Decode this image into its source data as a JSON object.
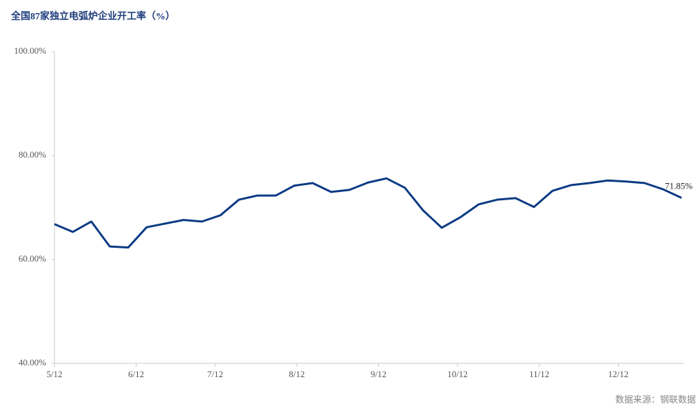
{
  "chart_data": {
    "type": "line",
    "title": "全国87家独立电弧炉企业开工率（%）",
    "source": "数据来源：钢联数据",
    "x": [
      0,
      7,
      14,
      21,
      28,
      35,
      42,
      49,
      56,
      63,
      70,
      77,
      84,
      91,
      98,
      105,
      112,
      119,
      126,
      133,
      140,
      147,
      154,
      161,
      168,
      175,
      182,
      189,
      196,
      203,
      210,
      217,
      224,
      231,
      238
    ],
    "series": [
      {
        "color": "#0b3a84",
        "values": [
          66.8,
          65.3,
          67.3,
          62.5,
          62.3,
          66.2,
          66.9,
          67.6,
          67.3,
          68.5,
          71.5,
          72.3,
          72.3,
          74.2,
          74.7,
          73.0,
          73.4,
          74.8,
          75.6,
          73.8,
          69.4,
          66.1,
          68.1,
          70.6,
          71.5,
          71.8,
          70.1,
          73.2,
          74.3,
          74.7,
          75.2,
          75.0,
          74.7,
          73.5,
          71.85
        ],
        "value_labels": [
          null,
          null,
          null,
          null,
          null,
          null,
          null,
          null,
          null,
          null,
          null,
          null,
          null,
          null,
          null,
          null,
          null,
          null,
          null,
          null,
          null,
          null,
          null,
          null,
          null,
          null,
          null,
          null,
          null,
          null,
          null,
          null,
          null,
          null,
          "71.85%"
        ]
      }
    ],
    "xlim": [
      0,
      239
    ],
    "xticks": [
      {
        "value": 0,
        "label": "5/12"
      },
      {
        "value": 31,
        "label": "6/12"
      },
      {
        "value": 61,
        "label": "7/12"
      },
      {
        "value": 92,
        "label": "8/12"
      },
      {
        "value": 123,
        "label": "9/12"
      },
      {
        "value": 153,
        "label": "10/12"
      },
      {
        "value": 184,
        "label": "11/12"
      },
      {
        "value": 214,
        "label": "12/12"
      }
    ],
    "ylim": [
      40,
      100
    ],
    "yticks": [
      {
        "value": 40,
        "label": "40.00%"
      },
      {
        "value": 60,
        "label": "60.00%"
      },
      {
        "value": 80,
        "label": "80.00%"
      },
      {
        "value": 100,
        "label": "100.00%"
      }
    ],
    "grid": false
  }
}
